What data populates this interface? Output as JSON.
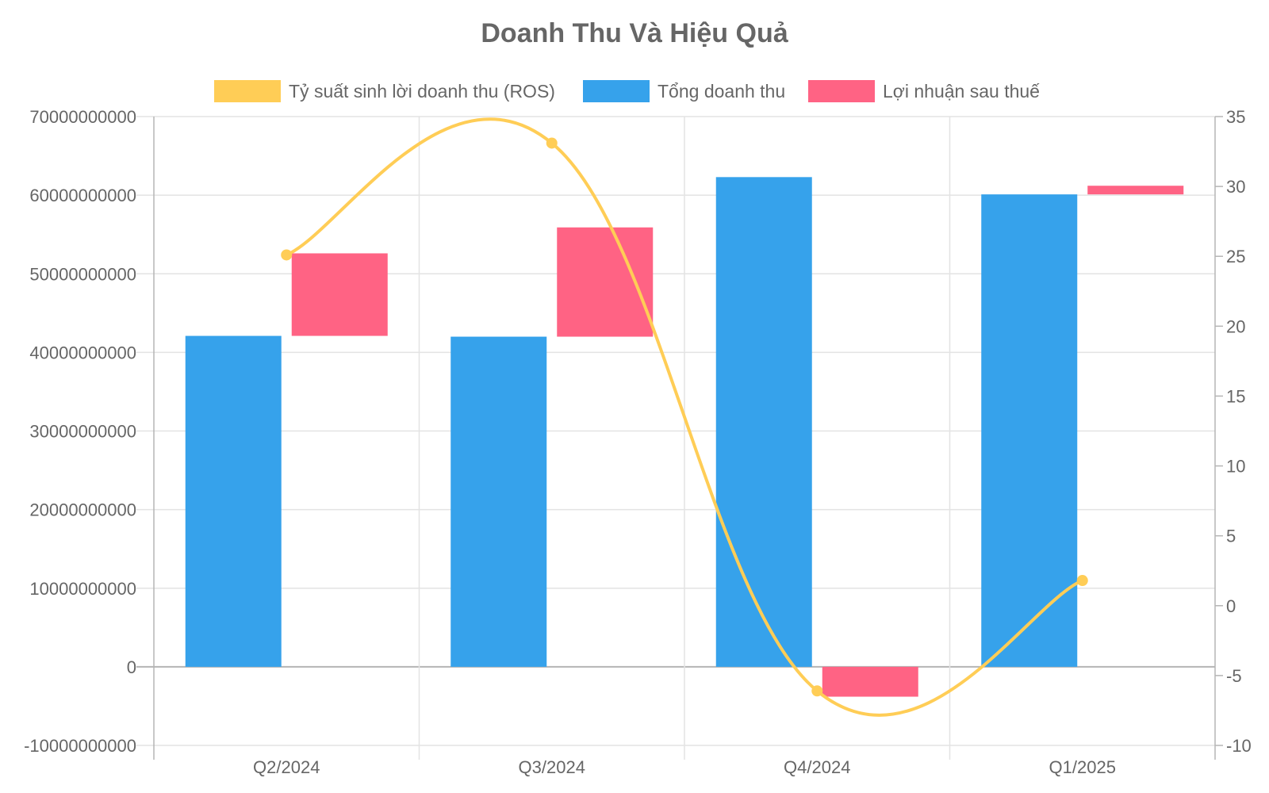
{
  "chart_data": {
    "type": "bar",
    "title": "Doanh Thu Và Hiệu Quả",
    "categories": [
      "Q2/2024",
      "Q3/2024",
      "Q4/2024",
      "Q1/2025"
    ],
    "legend_position": "top",
    "grid": true,
    "y_left": {
      "range": [
        -10000000000,
        70000000000
      ],
      "ticks": [
        "70000000000",
        "60000000000",
        "50000000000",
        "40000000000",
        "30000000000",
        "20000000000",
        "10000000000",
        "0",
        "-10000000000"
      ]
    },
    "y_right": {
      "range": [
        -10,
        35
      ],
      "ticks": [
        "35",
        "30",
        "25",
        "20",
        "15",
        "10",
        "5",
        "0",
        "-5",
        "-10"
      ]
    },
    "series": [
      {
        "name": "Tỷ suất sinh lời doanh thu (ROS)",
        "type": "line",
        "axis": "right",
        "color": "#ffcd56",
        "values": [
          25.1,
          33.1,
          -6.1,
          1.8
        ]
      },
      {
        "name": "Tổng doanh thu",
        "type": "bar",
        "axis": "left",
        "color": "#36a2eb",
        "values": [
          42100000000,
          42000000000,
          62300000000,
          60100000000
        ]
      },
      {
        "name": "Lợi nhuận sau thuế",
        "type": "floating-bar",
        "axis": "left",
        "color": "#ff6384",
        "ranges": [
          [
            42100000000,
            52600000000
          ],
          [
            42000000000,
            55900000000
          ],
          [
            -3800000000,
            0
          ],
          [
            60100000000,
            61200000000
          ]
        ]
      }
    ]
  }
}
